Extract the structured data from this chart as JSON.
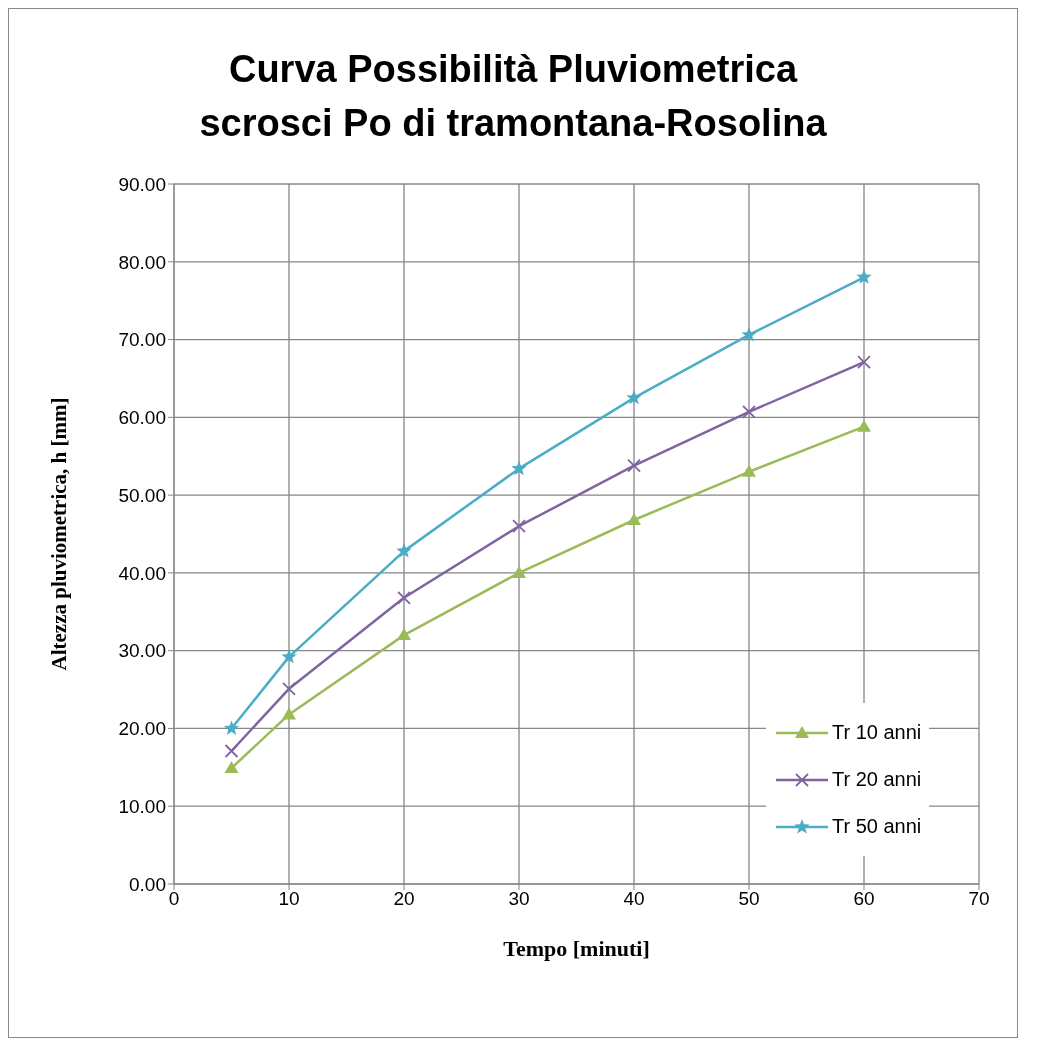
{
  "chart_data": {
    "type": "line",
    "title": "Curva Possibilità Pluviometrica\nscrosci Po di tramontana-Rosolina",
    "xlabel": "Tempo [minuti]",
    "ylabel": "Altezza pluviometrica, h [mm]",
    "x": [
      5,
      10,
      20,
      30,
      40,
      50,
      60
    ],
    "series": [
      {
        "name": "Tr 10 anni",
        "color": "#9bbb59",
        "marker": "triangle",
        "values": [
          14.9,
          21.8,
          32.0,
          40.0,
          46.8,
          53.0,
          58.8
        ]
      },
      {
        "name": "Tr 20 anni",
        "color": "#8064a2",
        "marker": "cross",
        "values": [
          17.1,
          25.1,
          36.8,
          46.0,
          53.8,
          60.7,
          67.1
        ]
      },
      {
        "name": "Tr 50 anni",
        "color": "#4bacc6",
        "marker": "star",
        "values": [
          20.0,
          29.2,
          42.8,
          53.4,
          62.5,
          70.6,
          78.0
        ]
      }
    ],
    "xlim": [
      0,
      70
    ],
    "xticks": [
      0,
      10,
      20,
      30,
      40,
      50,
      60,
      70
    ],
    "ylim": [
      0,
      90
    ],
    "yticks": [
      {
        "value": 0,
        "label": "0.00"
      },
      {
        "value": 10,
        "label": "10.00"
      },
      {
        "value": 20,
        "label": "20.00"
      },
      {
        "value": 30,
        "label": "30.00"
      },
      {
        "value": 40,
        "label": "40.00"
      },
      {
        "value": 50,
        "label": "50.00"
      },
      {
        "value": 60,
        "label": "60.00"
      },
      {
        "value": 70,
        "label": "70.00"
      },
      {
        "value": 80,
        "label": "80.00"
      },
      {
        "value": 90,
        "label": "90.00"
      }
    ],
    "grid": true,
    "legend": "bottom right",
    "line_style": "solid"
  }
}
